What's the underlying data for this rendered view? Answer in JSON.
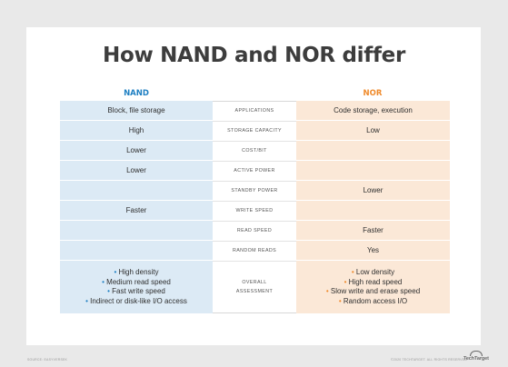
{
  "title": "How NAND and NOR differ",
  "columns": {
    "nand": "NAND",
    "nor": "NOR"
  },
  "rows": [
    {
      "label": "APPLICATIONS",
      "nand": "Block, file storage",
      "nor": "Code storage, execution"
    },
    {
      "label": "STORAGE CAPACITY",
      "nand": "High",
      "nor": "Low"
    },
    {
      "label": "COST/BIT",
      "nand": "Lower",
      "nor": ""
    },
    {
      "label": "ACTIVE POWER",
      "nand": "Lower",
      "nor": ""
    },
    {
      "label": "STANDBY POWER",
      "nand": "",
      "nor": "Lower"
    },
    {
      "label": "WRITE SPEED",
      "nand": "Faster",
      "nor": ""
    },
    {
      "label": "READ SPEED",
      "nand": "",
      "nor": "Faster"
    },
    {
      "label": "RANDOM READS",
      "nand": "",
      "nor": "Yes"
    }
  ],
  "overall": {
    "label_line1": "OVERALL",
    "label_line2": "ASSESSMENT",
    "nand": [
      "High density",
      "Medium read speed",
      "Fast write speed",
      "Indirect or disk-like I/O access"
    ],
    "nor": [
      "Low density",
      "High read speed",
      "Slow write and erase speed",
      "Random access I/O"
    ]
  },
  "footer": {
    "source": "SOURCE: EASYVERSEK",
    "copyright": "©2020 TECHTARGET. ALL RIGHTS RESERVED",
    "logo": "TechTarget"
  },
  "colors": {
    "nand_accent": "#1e7fc2",
    "nor_accent": "#ef8a2b",
    "nand_fill": "#dceaf5",
    "nor_fill": "#fbe8d7"
  }
}
